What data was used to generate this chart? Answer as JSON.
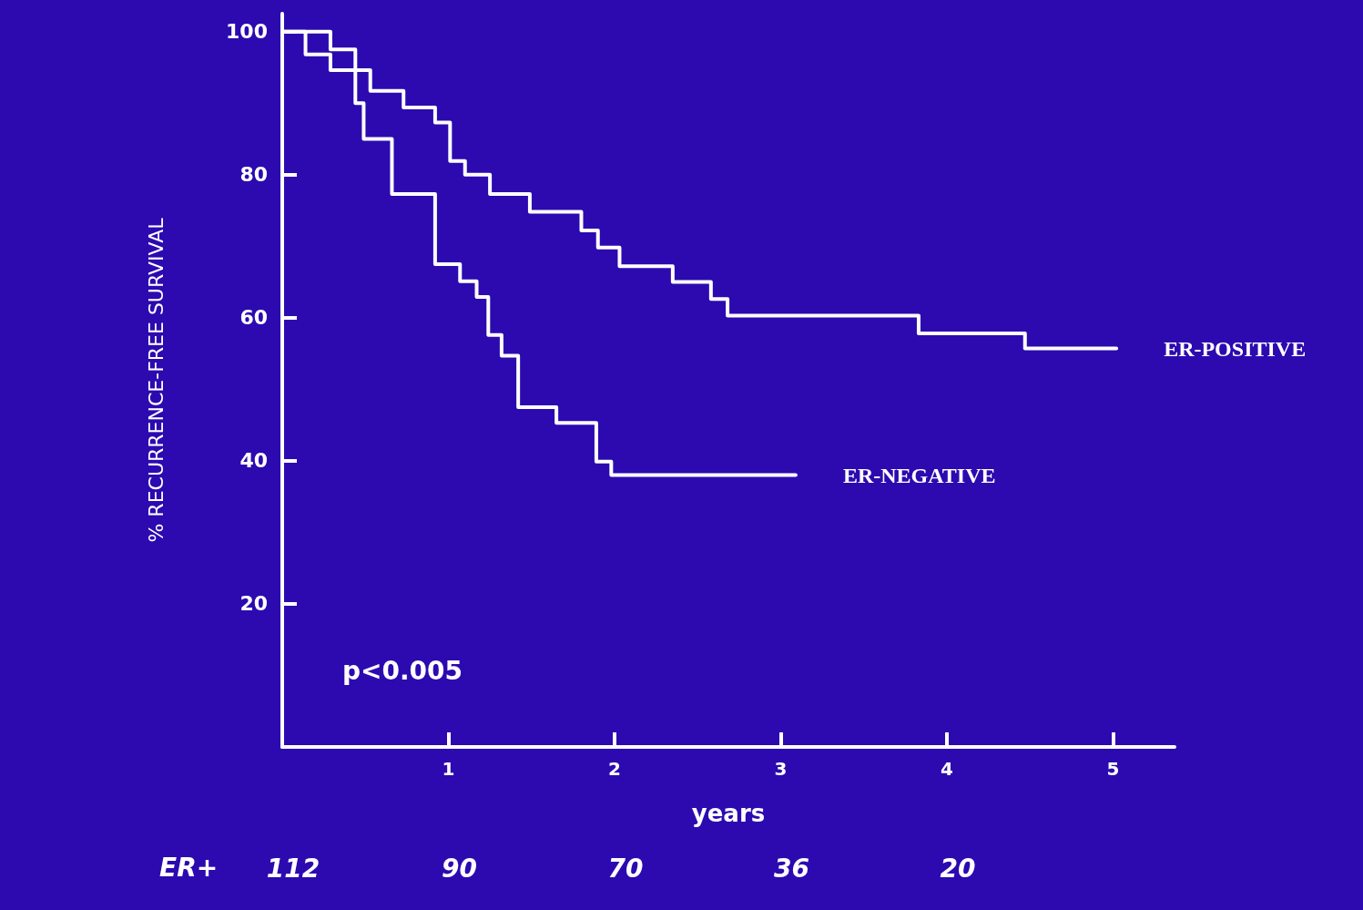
{
  "chart_data": {
    "type": "step",
    "xlabel": "years",
    "ylabel": "% RECURRENCE-FREE SURVIVAL",
    "xlim": [
      0,
      5.37
    ],
    "xticks": [
      1,
      2,
      3,
      4,
      5
    ],
    "ylim": [
      0,
      102.5
    ],
    "yticks": [
      20,
      40,
      60,
      80,
      100
    ],
    "grid": false,
    "legend": false,
    "marker": "none",
    "line_style": "solid",
    "series": [
      {
        "name": "ER-POSITIVE",
        "color": "#ffffff",
        "x": [
          0,
          0.29,
          0.44,
          0.53,
          0.73,
          0.92,
          1.01,
          1.1,
          1.25,
          1.49,
          1.8,
          1.9,
          2.03,
          2.35,
          2.58,
          2.68,
          3.83,
          4.47,
          5.02
        ],
        "values": [
          100,
          97.5,
          94.6,
          91.7,
          89.4,
          87.3,
          81.9,
          80,
          77.3,
          74.8,
          72.2,
          69.8,
          67.2,
          65,
          62.6,
          60.3,
          57.8,
          55.7,
          55.7
        ]
      },
      {
        "name": "ER-NEGATIVE",
        "color": "#ffffff",
        "x": [
          0,
          0.14,
          0.29,
          0.44,
          0.49,
          0.66,
          0.92,
          1.07,
          1.17,
          1.24,
          1.32,
          1.42,
          1.65,
          1.89,
          1.98,
          3.09
        ],
        "values": [
          100,
          96.8,
          94.6,
          90,
          85,
          77.3,
          67.5,
          65.1,
          62.9,
          57.6,
          54.7,
          47.5,
          45.3,
          39.9,
          38,
          38
        ]
      }
    ],
    "annotations": [
      "p<0.005",
      "ER+",
      "112",
      "90",
      "70",
      "36",
      "20"
    ]
  }
}
